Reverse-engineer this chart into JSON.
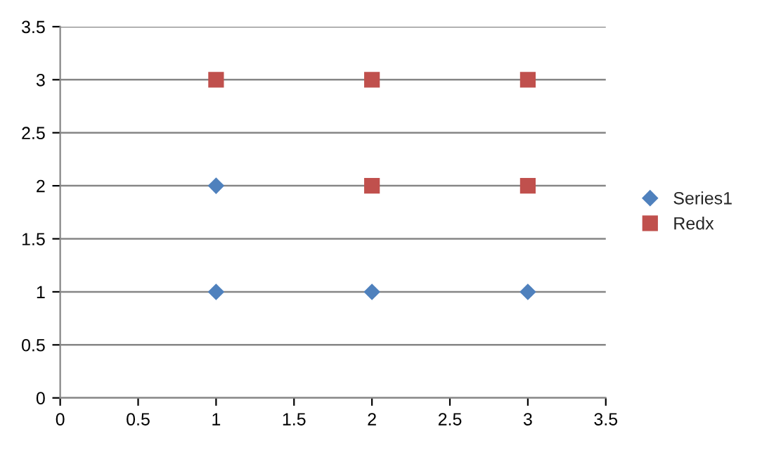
{
  "chart_data": {
    "type": "scatter",
    "series": [
      {
        "name": "Series1",
        "color": "#4f81bd",
        "marker": "diamond",
        "x": [
          1,
          1,
          2,
          3
        ],
        "values": [
          1,
          2,
          1,
          1
        ]
      },
      {
        "name": "Redx",
        "color": "#c0504d",
        "marker": "square",
        "x": [
          1,
          2,
          2,
          3,
          3
        ],
        "values": [
          3,
          3,
          2,
          3,
          2
        ]
      }
    ],
    "xlim": [
      0,
      3.5
    ],
    "xticks": [
      0,
      0.5,
      1,
      1.5,
      2,
      2.5,
      3,
      3.5
    ],
    "ylim": [
      0,
      3.5
    ],
    "yticks": [
      0,
      0.5,
      1,
      1.5,
      2,
      2.5,
      3,
      3.5
    ],
    "grid": "y",
    "legend": "right"
  }
}
